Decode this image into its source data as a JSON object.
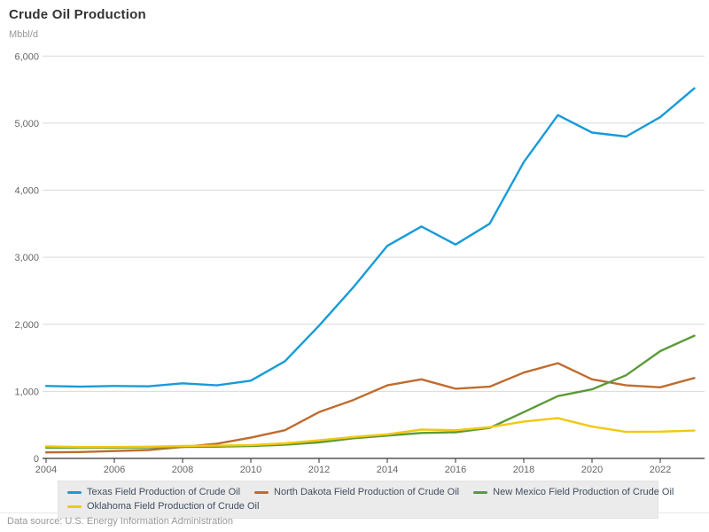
{
  "header": {
    "title": "Crude Oil Production"
  },
  "chart": {
    "y_unit": "Mbbl/d",
    "source": "Data source: U.S. Energy Information Administration"
  },
  "chart_data": {
    "type": "line",
    "title": "Crude Oil Production",
    "ylabel": "Mbbl/d",
    "xlabel": "",
    "ylim": [
      0,
      6000
    ],
    "y_tick_step": 1000,
    "y_tick_labels": [
      "0",
      "1,000",
      "2,000",
      "3,000",
      "4,000",
      "5,000",
      "6,000"
    ],
    "x": [
      2004,
      2005,
      2006,
      2007,
      2008,
      2009,
      2010,
      2011,
      2012,
      2013,
      2014,
      2015,
      2016,
      2017,
      2018,
      2019,
      2020,
      2021,
      2022,
      2023
    ],
    "x_tick_labels": [
      "2004",
      "2006",
      "2008",
      "2010",
      "2012",
      "2014",
      "2016",
      "2018",
      "2020",
      "2022"
    ],
    "grid": "horizontal",
    "legend_position": "bottom",
    "colors": {
      "grid": "#d9d9d9",
      "axis": "#333333",
      "tick_text": "#666666",
      "legend_text": "#414f62",
      "legend_bg": "#ebebeb"
    },
    "series": [
      {
        "name": "Texas Field Production of Crude Oil",
        "color": "#189bd7",
        "legend_row": 1,
        "values": [
          1080,
          1070,
          1080,
          1075,
          1120,
          1090,
          1160,
          1450,
          1980,
          2550,
          3170,
          3460,
          3190,
          3500,
          4420,
          5120,
          4860,
          4800,
          5090,
          5520
        ]
      },
      {
        "name": "North Dakota Field Production of Crude Oil",
        "color": "#bf6c2e",
        "legend_row": 1,
        "values": [
          90,
          95,
          110,
          125,
          170,
          220,
          310,
          420,
          690,
          870,
          1090,
          1180,
          1040,
          1070,
          1280,
          1420,
          1180,
          1090,
          1060,
          1200
        ]
      },
      {
        "name": "New Mexico Field Production of Crude Oil",
        "color": "#5b9a38",
        "legend_row": 1,
        "values": [
          160,
          160,
          160,
          165,
          170,
          175,
          185,
          205,
          240,
          300,
          340,
          380,
          390,
          455,
          690,
          930,
          1030,
          1240,
          1600,
          1830
        ]
      },
      {
        "name": "Oklahoma Field Production of Crude Oil",
        "color": "#f2c810",
        "legend_row": 2,
        "values": [
          180,
          170,
          170,
          175,
          185,
          190,
          200,
          225,
          270,
          320,
          360,
          430,
          420,
          465,
          550,
          600,
          475,
          395,
          400,
          415
        ]
      }
    ]
  }
}
